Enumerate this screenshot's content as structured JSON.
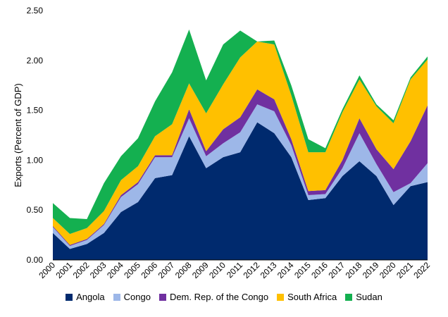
{
  "chart_data": {
    "type": "area",
    "stacked": true,
    "ylabel": "Exports (Percent of GDP)",
    "ylim": [
      0,
      2.5
    ],
    "yticks": [
      "0.00",
      "0.50",
      "1.00",
      "1.50",
      "2.00",
      "2.50"
    ],
    "grid": false,
    "legend_position": "bottom",
    "x": [
      "2000",
      "2001",
      "2002",
      "2003",
      "2004",
      "2005",
      "2006",
      "2007",
      "2008",
      "2009",
      "2010",
      "2011",
      "2012",
      "2013",
      "2014",
      "2015",
      "2016",
      "2017",
      "2018",
      "2019",
      "2020",
      "2021",
      "2022"
    ],
    "series": [
      {
        "name": "Angola",
        "color": "#002a6e",
        "values": [
          0.27,
          0.11,
          0.16,
          0.27,
          0.48,
          0.58,
          0.82,
          0.85,
          1.24,
          0.92,
          1.03,
          1.08,
          1.38,
          1.27,
          1.03,
          0.6,
          0.62,
          0.84,
          0.99,
          0.84,
          0.55,
          0.74,
          0.78
        ]
      },
      {
        "name": "Congo",
        "color": "#9db7e8",
        "values": [
          0.06,
          0.03,
          0.04,
          0.08,
          0.15,
          0.18,
          0.21,
          0.18,
          0.18,
          0.12,
          0.14,
          0.2,
          0.18,
          0.22,
          0.12,
          0.05,
          0.04,
          0.08,
          0.28,
          0.12,
          0.13,
          0.03,
          0.19
        ]
      },
      {
        "name": "Dem. Rep. of the Congo",
        "color": "#7030a0",
        "values": [
          0.01,
          0.01,
          0.01,
          0.01,
          0.02,
          0.02,
          0.02,
          0.02,
          0.09,
          0.05,
          0.14,
          0.15,
          0.15,
          0.12,
          0.06,
          0.04,
          0.04,
          0.08,
          0.15,
          0.15,
          0.23,
          0.42,
          0.58
        ]
      },
      {
        "name": "South Africa",
        "color": "#ffc000",
        "values": [
          0.08,
          0.11,
          0.11,
          0.13,
          0.15,
          0.16,
          0.19,
          0.31,
          0.26,
          0.38,
          0.45,
          0.6,
          0.48,
          0.55,
          0.44,
          0.39,
          0.38,
          0.48,
          0.39,
          0.43,
          0.46,
          0.62,
          0.46
        ]
      },
      {
        "name": "Sudan",
        "color": "#14b050",
        "values": [
          0.15,
          0.16,
          0.09,
          0.28,
          0.24,
          0.28,
          0.35,
          0.52,
          0.54,
          0.33,
          0.4,
          0.27,
          0.0,
          0.04,
          0.1,
          0.13,
          0.04,
          0.03,
          0.04,
          0.02,
          0.03,
          0.02,
          0.03
        ]
      }
    ]
  }
}
